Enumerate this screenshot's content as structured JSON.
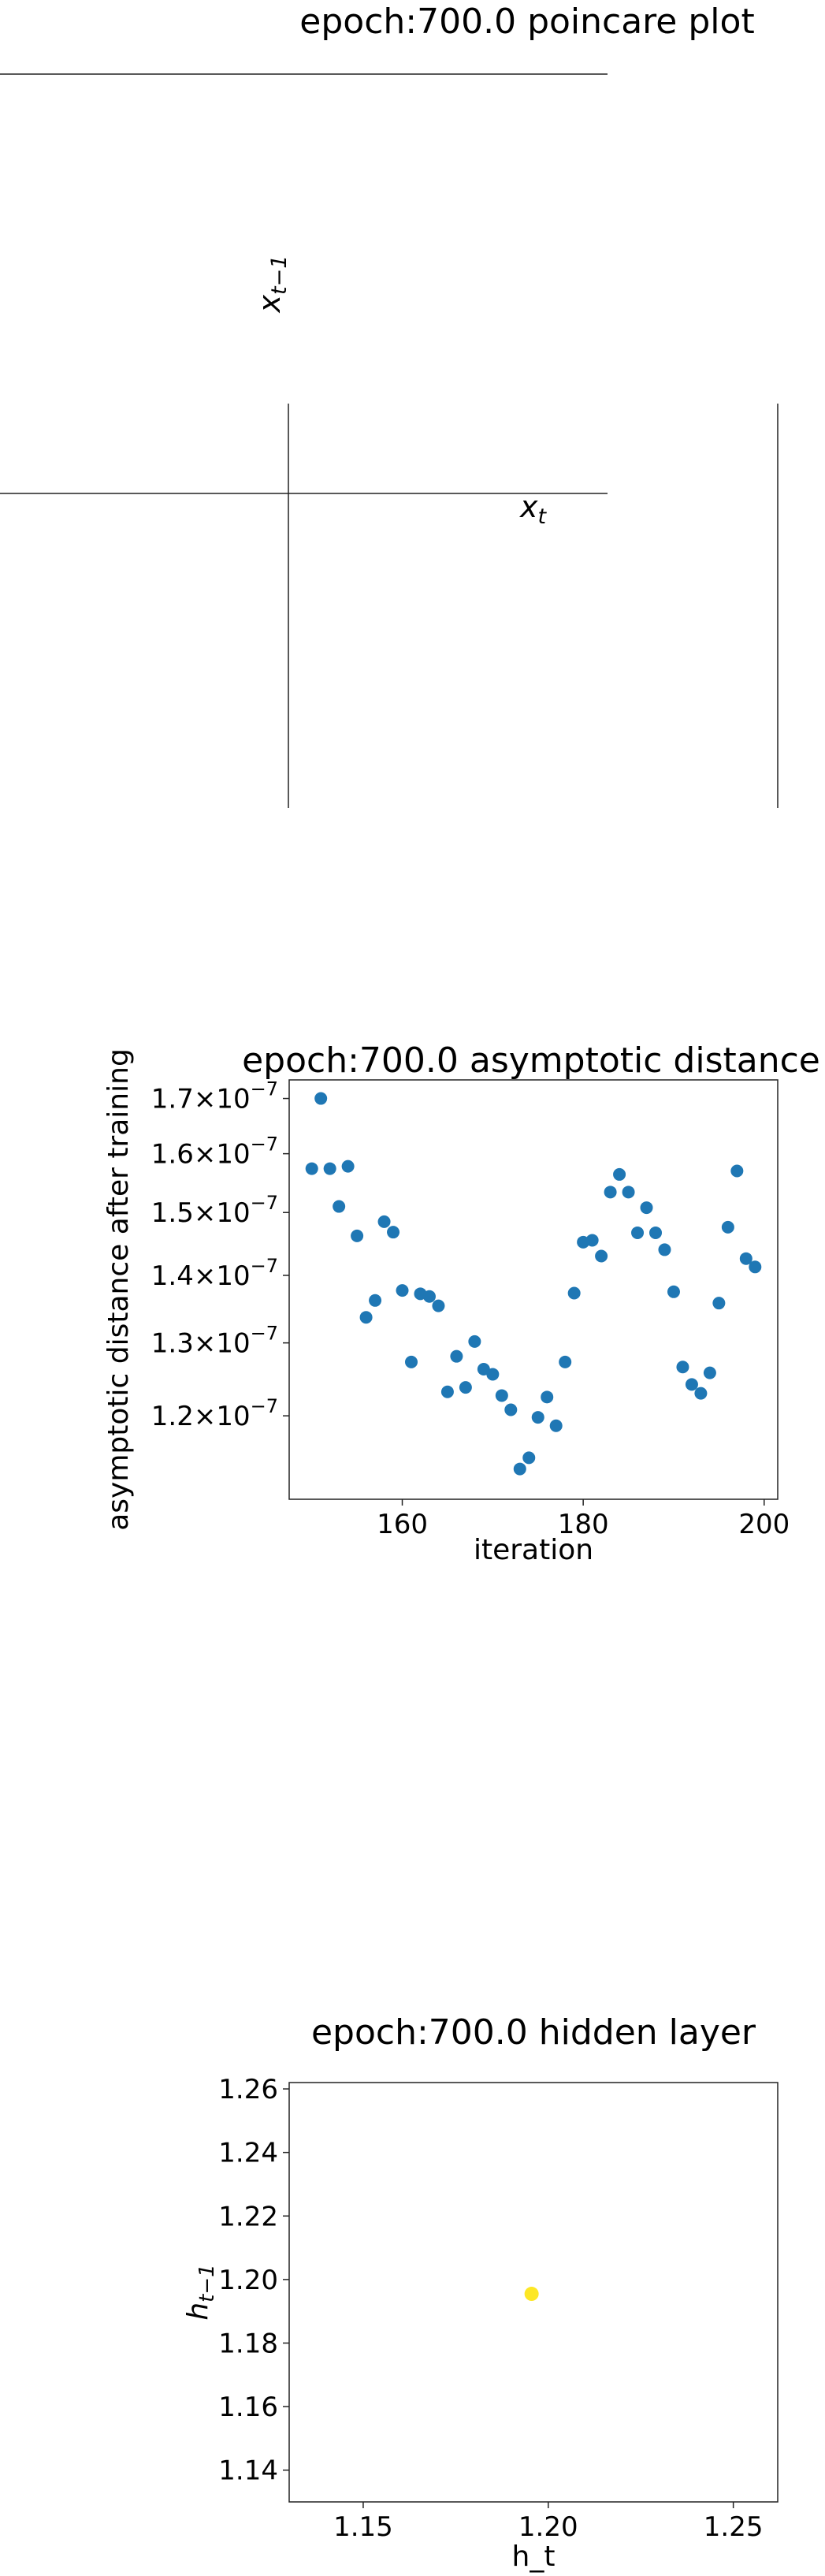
{
  "chart_data": [
    {
      "type": "line",
      "title": "epoch:700.0 poincare plot",
      "xlabel": "x_t",
      "ylabel": "x_{t-1}",
      "series": []
    },
    {
      "type": "scatter",
      "title": "epoch:700.0 asymptotic distance",
      "xlabel": "iteration",
      "ylabel": "asymptotic distance after training",
      "xlim": [
        147.5,
        201.5
      ],
      "ylim": [
        1.095e-07,
        1.735e-07
      ],
      "yscale": "log",
      "marker_color": "#1f77b4",
      "xticks": [
        160,
        180,
        200
      ],
      "xtick_labels": [
        "160",
        "180",
        "200"
      ],
      "yticks": [
        1.2e-07,
        1.3e-07,
        1.4e-07,
        1.5e-07,
        1.6e-07,
        1.7e-07
      ],
      "ytick_mantissas": [
        "1.2",
        "1.3",
        "1.4",
        "1.5",
        "1.6",
        "1.7"
      ],
      "ytick_sep": "×10",
      "ytick_exp": "−7",
      "x": [
        150,
        151,
        152,
        153,
        154,
        155,
        156,
        157,
        158,
        159,
        160,
        161,
        162,
        163,
        164,
        165,
        166,
        167,
        168,
        169,
        170,
        171,
        172,
        173,
        174,
        175,
        176,
        177,
        178,
        179,
        180,
        181,
        182,
        183,
        184,
        185,
        186,
        187,
        188,
        189,
        190,
        191,
        192,
        193,
        194,
        195,
        196,
        197,
        198,
        199
      ],
      "y": [
        1.574e-07,
        1.7e-07,
        1.574e-07,
        1.51e-07,
        1.578e-07,
        1.462e-07,
        1.337e-07,
        1.362e-07,
        1.485e-07,
        1.468e-07,
        1.377e-07,
        1.273e-07,
        1.372e-07,
        1.368e-07,
        1.354e-07,
        1.232e-07,
        1.281e-07,
        1.238e-07,
        1.302e-07,
        1.263e-07,
        1.256e-07,
        1.227e-07,
        1.208e-07,
        1.132e-07,
        1.146e-07,
        1.198e-07,
        1.225e-07,
        1.187e-07,
        1.273e-07,
        1.373e-07,
        1.452e-07,
        1.455e-07,
        1.43e-07,
        1.534e-07,
        1.564e-07,
        1.534e-07,
        1.467e-07,
        1.508e-07,
        1.467e-07,
        1.44e-07,
        1.375e-07,
        1.266e-07,
        1.242e-07,
        1.23e-07,
        1.258e-07,
        1.358e-07,
        1.476e-07,
        1.57e-07,
        1.426e-07,
        1.413e-07
      ]
    },
    {
      "type": "scatter",
      "title": "epoch:700.0 hidden layer",
      "xlabel": "h_t",
      "ylabel": "h_{t-1}",
      "xlim": [
        1.13,
        1.262
      ],
      "ylim": [
        1.13,
        1.262
      ],
      "marker_color": "#fde725",
      "xticks": [
        1.15,
        1.2,
        1.25
      ],
      "xtick_labels": [
        "1.15",
        "1.20",
        "1.25"
      ],
      "yticks": [
        1.14,
        1.16,
        1.18,
        1.2,
        1.22,
        1.24,
        1.26
      ],
      "ytick_labels": [
        "1.14",
        "1.16",
        "1.18",
        "1.20",
        "1.22",
        "1.24",
        "1.26"
      ],
      "x": [
        1.1955
      ],
      "y": [
        1.1955
      ]
    }
  ]
}
